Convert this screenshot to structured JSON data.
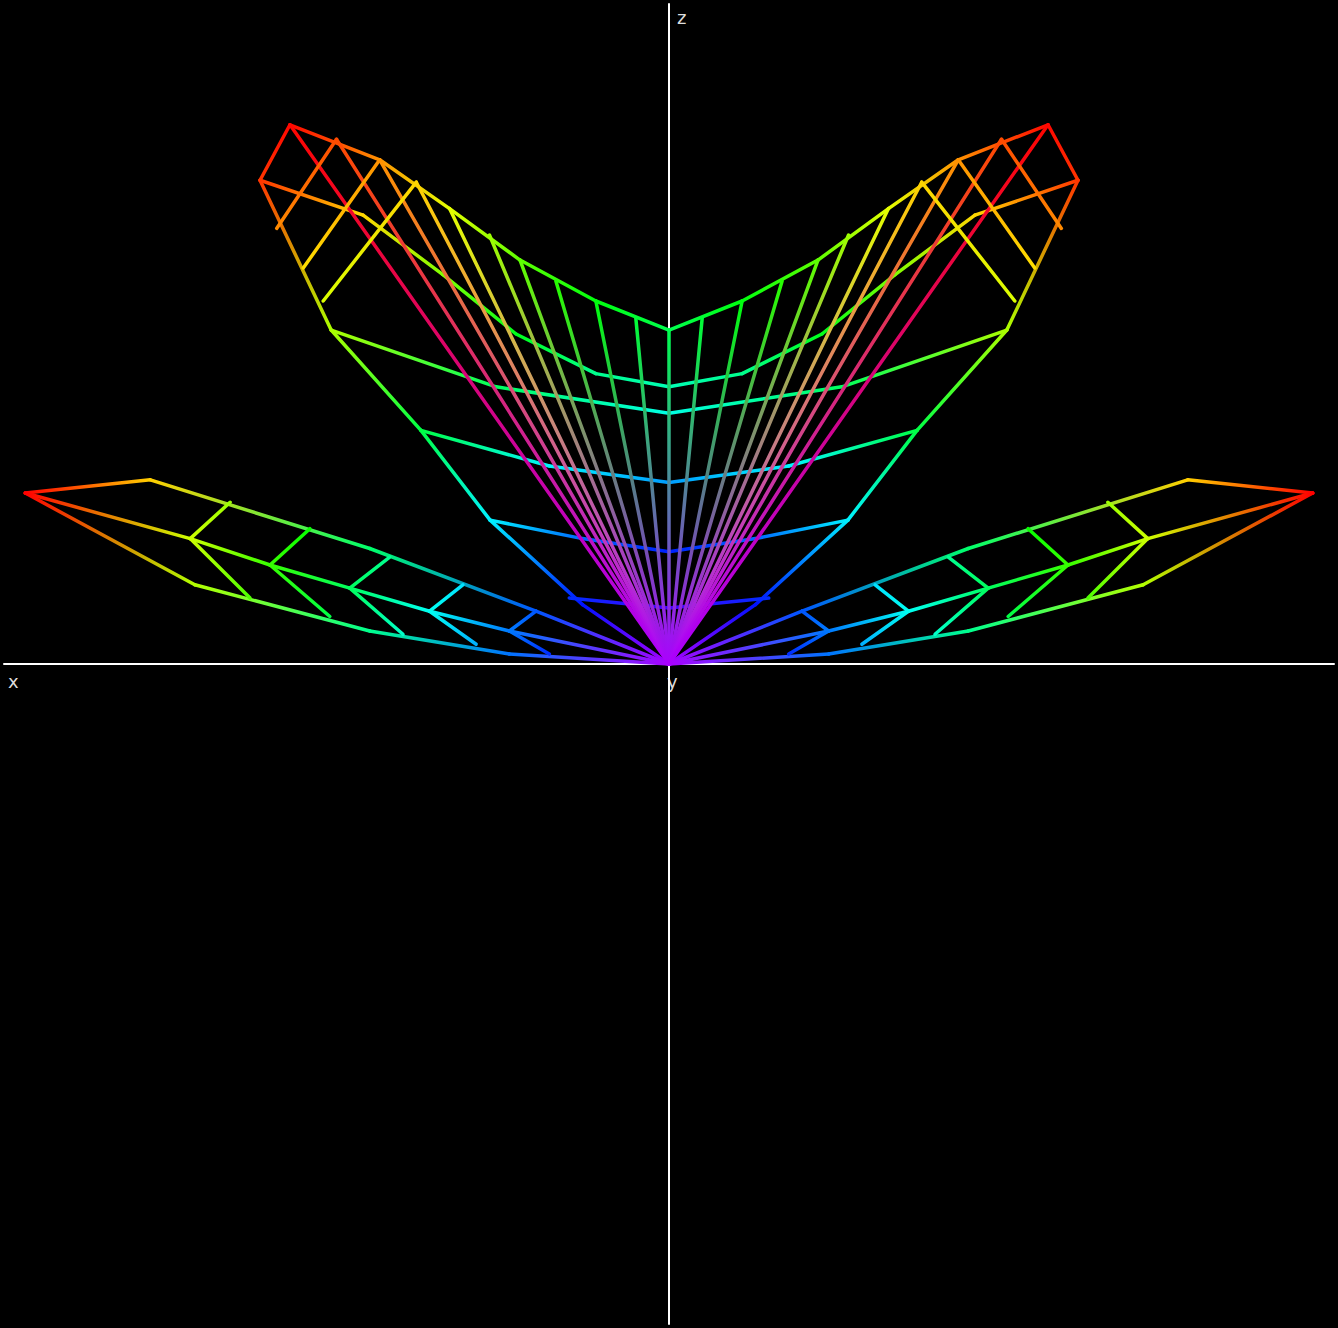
{
  "chart_data": {
    "type": "wireframe",
    "x_label": "x",
    "y_label": "y",
    "z_label": "z",
    "xlim": [
      -10,
      10
    ],
    "zlim": [
      -10,
      10
    ],
    "tick_labels": false,
    "grid": false,
    "color": "rainbow",
    "lines": [
      [
        [
          -5.7,
          8.17
        ],
        [
          -4.35,
          7.64
        ],
        [
          -3.3,
          6.9
        ],
        [
          -2.24,
          6.12
        ],
        [
          -1.1,
          5.5
        ],
        [
          0,
          5.06
        ],
        [
          1.1,
          5.5
        ],
        [
          2.24,
          6.12
        ],
        [
          3.3,
          6.9
        ],
        [
          4.35,
          7.64
        ],
        [
          5.7,
          8.17
        ]
      ],
      [
        [
          -5.7,
          8.17
        ],
        [
          -6.15,
          7.33
        ]
      ],
      [
        [
          5.7,
          8.17
        ],
        [
          6.15,
          7.33
        ]
      ],
      [
        [
          -6.15,
          7.33
        ],
        [
          -5.08,
          5.06
        ],
        [
          -3.73,
          3.54
        ],
        [
          -2.69,
          2.18
        ],
        [
          -1.3,
          0.9
        ],
        [
          0,
          0
        ]
      ],
      [
        [
          6.15,
          7.33
        ],
        [
          5.08,
          5.06
        ],
        [
          3.73,
          3.54
        ],
        [
          2.69,
          2.18
        ],
        [
          1.3,
          0.9
        ],
        [
          0,
          0
        ]
      ],
      [
        [
          -6.15,
          7.33
        ],
        [
          -4.6,
          6.8
        ],
        [
          -3.4,
          5.9
        ],
        [
          -2.3,
          5.0
        ],
        [
          -1.1,
          4.4
        ],
        [
          0,
          4.2
        ],
        [
          1.1,
          4.4
        ],
        [
          2.3,
          5.0
        ],
        [
          3.4,
          5.9
        ],
        [
          4.6,
          6.8
        ],
        [
          6.15,
          7.33
        ]
      ],
      [
        [
          -5.08,
          5.06
        ],
        [
          -2.6,
          4.2
        ],
        [
          0,
          3.8
        ],
        [
          2.6,
          4.2
        ],
        [
          5.08,
          5.06
        ]
      ],
      [
        [
          -3.73,
          3.54
        ],
        [
          -1.8,
          3.0
        ],
        [
          0,
          2.75
        ],
        [
          1.8,
          3.0
        ],
        [
          3.73,
          3.54
        ]
      ],
      [
        [
          -2.69,
          2.18
        ],
        [
          -1.3,
          1.9
        ],
        [
          0,
          1.7
        ],
        [
          1.3,
          1.9
        ],
        [
          2.69,
          2.18
        ]
      ],
      [
        [
          -1.5,
          1.0
        ],
        [
          0,
          0.85
        ],
        [
          1.5,
          1.0
        ]
      ],
      [
        [
          0,
          0
        ],
        [
          -5.7,
          8.17
        ]
      ],
      [
        [
          0,
          0
        ],
        [
          -5.0,
          7.95
        ]
      ],
      [
        [
          0,
          0
        ],
        [
          -4.35,
          7.64
        ]
      ],
      [
        [
          0,
          0
        ],
        [
          -3.8,
          7.3
        ]
      ],
      [
        [
          0,
          0
        ],
        [
          -3.3,
          6.9
        ]
      ],
      [
        [
          0,
          0
        ],
        [
          -2.7,
          6.5
        ]
      ],
      [
        [
          0,
          0
        ],
        [
          -2.24,
          6.12
        ]
      ],
      [
        [
          0,
          0
        ],
        [
          -1.7,
          5.8
        ]
      ],
      [
        [
          0,
          0
        ],
        [
          -1.1,
          5.5
        ]
      ],
      [
        [
          0,
          0
        ],
        [
          -0.5,
          5.25
        ]
      ],
      [
        [
          0,
          0
        ],
        [
          0,
          5.06
        ]
      ],
      [
        [
          0,
          0
        ],
        [
          0.5,
          5.25
        ]
      ],
      [
        [
          0,
          0
        ],
        [
          1.1,
          5.5
        ]
      ],
      [
        [
          0,
          0
        ],
        [
          1.7,
          5.8
        ]
      ],
      [
        [
          0,
          0
        ],
        [
          2.24,
          6.12
        ]
      ],
      [
        [
          0,
          0
        ],
        [
          2.7,
          6.5
        ]
      ],
      [
        [
          0,
          0
        ],
        [
          3.3,
          6.9
        ]
      ],
      [
        [
          0,
          0
        ],
        [
          3.8,
          7.3
        ]
      ],
      [
        [
          0,
          0
        ],
        [
          4.35,
          7.64
        ]
      ],
      [
        [
          0,
          0
        ],
        [
          5.0,
          7.95
        ]
      ],
      [
        [
          0,
          0
        ],
        [
          5.7,
          8.17
        ]
      ],
      [
        [
          -5.0,
          7.95
        ],
        [
          -5.9,
          6.6
        ]
      ],
      [
        [
          -4.35,
          7.64
        ],
        [
          -5.5,
          6.0
        ]
      ],
      [
        [
          -3.8,
          7.3
        ],
        [
          -5.2,
          5.5
        ]
      ],
      [
        [
          5.0,
          7.95
        ],
        [
          5.9,
          6.6
        ]
      ],
      [
        [
          4.35,
          7.64
        ],
        [
          5.5,
          6.0
        ]
      ],
      [
        [
          3.8,
          7.3
        ],
        [
          5.2,
          5.5
        ]
      ],
      [
        [
          -9.68,
          2.59
        ],
        [
          -7.8,
          2.79
        ]
      ],
      [
        [
          -9.68,
          2.59
        ],
        [
          -7.13,
          1.2
        ]
      ],
      [
        [
          -7.8,
          2.79
        ],
        [
          -4.5,
          1.75
        ],
        [
          -2.0,
          0.8
        ],
        [
          0,
          0
        ]
      ],
      [
        [
          -7.13,
          1.2
        ],
        [
          -4.5,
          0.5
        ],
        [
          -2.4,
          0.15
        ],
        [
          0,
          0
        ]
      ],
      [
        [
          -9.68,
          2.59
        ],
        [
          -7.2,
          1.9
        ],
        [
          -6.0,
          1.5
        ],
        [
          -4.8,
          1.15
        ],
        [
          -3.6,
          0.8
        ],
        [
          -2.4,
          0.5
        ],
        [
          0,
          0
        ]
      ],
      [
        [
          -6.6,
          2.45
        ],
        [
          -7.2,
          1.9
        ],
        [
          -6.3,
          1.0
        ]
      ],
      [
        [
          -5.4,
          2.05
        ],
        [
          -6.0,
          1.5
        ],
        [
          -5.1,
          0.72
        ]
      ],
      [
        [
          -4.2,
          1.62
        ],
        [
          -4.8,
          1.15
        ],
        [
          -4.0,
          0.45
        ]
      ],
      [
        [
          -3.1,
          1.2
        ],
        [
          -3.6,
          0.8
        ],
        [
          -2.9,
          0.3
        ]
      ],
      [
        [
          -2.0,
          0.8
        ],
        [
          -2.4,
          0.5
        ],
        [
          -1.8,
          0.15
        ]
      ],
      [
        [
          9.68,
          2.59
        ],
        [
          7.8,
          2.79
        ]
      ],
      [
        [
          9.68,
          2.59
        ],
        [
          7.13,
          1.2
        ]
      ],
      [
        [
          7.8,
          2.79
        ],
        [
          4.5,
          1.75
        ],
        [
          2.0,
          0.8
        ],
        [
          0,
          0
        ]
      ],
      [
        [
          7.13,
          1.2
        ],
        [
          4.5,
          0.5
        ],
        [
          2.4,
          0.15
        ],
        [
          0,
          0
        ]
      ],
      [
        [
          9.68,
          2.59
        ],
        [
          7.2,
          1.9
        ],
        [
          6.0,
          1.5
        ],
        [
          4.8,
          1.15
        ],
        [
          3.6,
          0.8
        ],
        [
          2.4,
          0.5
        ],
        [
          0,
          0
        ]
      ],
      [
        [
          6.6,
          2.45
        ],
        [
          7.2,
          1.9
        ],
        [
          6.3,
          1.0
        ]
      ],
      [
        [
          5.4,
          2.05
        ],
        [
          6.0,
          1.5
        ],
        [
          5.1,
          0.72
        ]
      ],
      [
        [
          4.2,
          1.62
        ],
        [
          4.8,
          1.15
        ],
        [
          4.0,
          0.45
        ]
      ],
      [
        [
          3.1,
          1.2
        ],
        [
          3.6,
          0.8
        ],
        [
          2.9,
          0.3
        ]
      ],
      [
        [
          2.0,
          0.8
        ],
        [
          2.4,
          0.5
        ],
        [
          1.8,
          0.15
        ]
      ]
    ]
  }
}
